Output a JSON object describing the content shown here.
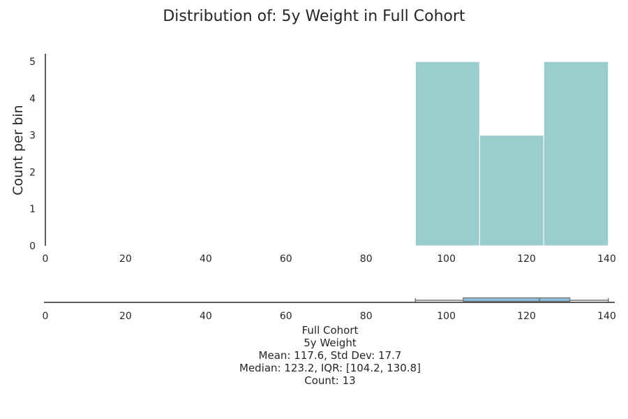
{
  "chart_data": {
    "type": "histogram",
    "title": "Distribution of: 5y Weight in Full Cohort",
    "ylabel": "Count per bin",
    "xlabel": "",
    "xlim": [
      0,
      142
    ],
    "ylim": [
      0,
      5.25
    ],
    "x_ticks": [
      "0",
      "20",
      "40",
      "60",
      "80",
      "100",
      "120",
      "140"
    ],
    "y_ticks": [
      "0",
      "1",
      "2",
      "3",
      "4",
      "5"
    ],
    "bar_color": "#9ccdce",
    "bins": [
      {
        "start": 92.3,
        "end": 108.3,
        "count": 5
      },
      {
        "start": 108.3,
        "end": 124.3,
        "count": 3
      },
      {
        "start": 124.3,
        "end": 140.4,
        "count": 5
      }
    ],
    "boxplot": {
      "min": 92.3,
      "q1": 104.2,
      "median": 123.2,
      "q3": 130.8,
      "max": 140.4,
      "box_color": "#8bbfd9"
    },
    "stats": {
      "group": "Full Cohort",
      "variable": "5y Weight",
      "mean_sd": "Mean: 117.6, Std Dev: 17.7",
      "median_iqr": "Median: 123.2, IQR: [104.2, 130.8]",
      "count": "Count: 13"
    }
  }
}
